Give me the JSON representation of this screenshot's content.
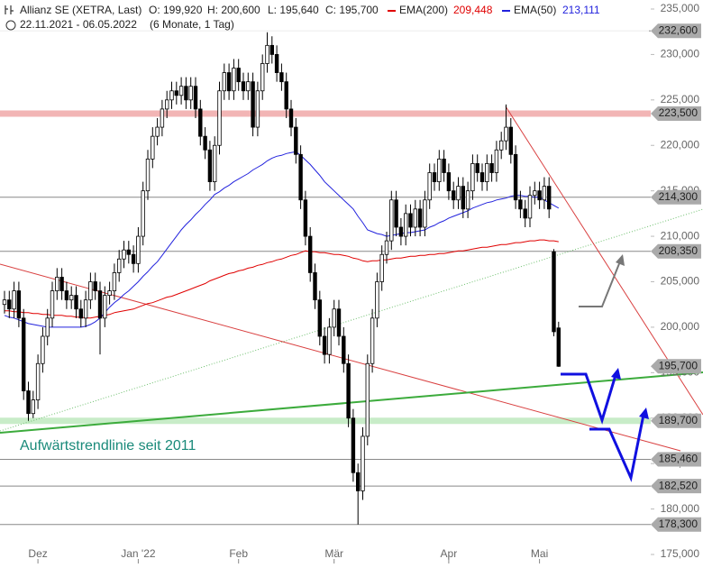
{
  "chart_data": {
    "type": "candlestick",
    "title": "Allianz SE (XETRA, Last)",
    "ohlc_labels": [
      "O: 199,920",
      "H: 200,600",
      "L: 195,640",
      "C: 195,700"
    ],
    "subtitle": "22.11.2021 - 06.05.2022",
    "period": "(6 Monate, 1 Tag)",
    "annotation": "Aufwärtstrendlinie seit 2011",
    "up_color": "#ffffff",
    "down_color": "#000000",
    "categories": [
      null,
      null,
      null,
      null,
      null,
      null,
      null,
      "Dez",
      null,
      null,
      null,
      null,
      null,
      null,
      null,
      null,
      null,
      null,
      null,
      null,
      null,
      null,
      null,
      null,
      null,
      null,
      null,
      null,
      "Jan '22",
      null,
      null,
      null,
      null,
      null,
      null,
      null,
      null,
      null,
      null,
      null,
      null,
      null,
      null,
      null,
      null,
      null,
      null,
      null,
      null,
      "Feb",
      null,
      null,
      null,
      null,
      null,
      null,
      null,
      null,
      null,
      null,
      null,
      null,
      null,
      null,
      null,
      null,
      null,
      null,
      null,
      "Mär",
      null,
      null,
      null,
      null,
      null,
      null,
      null,
      null,
      null,
      null,
      null,
      null,
      null,
      null,
      null,
      null,
      null,
      null,
      null,
      null,
      null,
      null,
      null,
      "Apr",
      null,
      null,
      null,
      null,
      null,
      null,
      null,
      null,
      null,
      null,
      null,
      null,
      null,
      null,
      null,
      null,
      null,
      null,
      "Mai",
      null,
      null,
      null,
      null
    ],
    "open": [
      202.5,
      203,
      202,
      204,
      201,
      193,
      190.5,
      192,
      196,
      199,
      201,
      204,
      205.5,
      204,
      203,
      203.5,
      202,
      201,
      203,
      205,
      204,
      201,
      203.5,
      204,
      206,
      207.5,
      208.5,
      208,
      207,
      210,
      215,
      218.5,
      221,
      222,
      224,
      225,
      226,
      225.5,
      226.5,
      225,
      226.5,
      224,
      221,
      219.5,
      216,
      220,
      226,
      228,
      226,
      228.5,
      227,
      226,
      227,
      222,
      226,
      229,
      231,
      230,
      228,
      227,
      224,
      222,
      219,
      214,
      210,
      206,
      203,
      199,
      197,
      200,
      202,
      199,
      196,
      190,
      184,
      182,
      188,
      196,
      201,
      205,
      208,
      209.5,
      214,
      211,
      210,
      212.5,
      211,
      213,
      211,
      214,
      217,
      216,
      218.5,
      217,
      215,
      214,
      215.5,
      213,
      215,
      218,
      217,
      216,
      218,
      217,
      219.5,
      220.5,
      222,
      219,
      214,
      213,
      212,
      214.5,
      215,
      214,
      215.5,
      208.3,
      199.92
    ],
    "high": [
      204,
      204,
      205,
      205,
      202,
      194,
      193,
      197,
      200,
      202,
      205,
      206.5,
      206.5,
      205,
      204.5,
      204.5,
      203,
      204,
      206,
      206,
      205,
      204.5,
      205,
      207,
      208.5,
      209.5,
      209.5,
      209,
      211,
      216,
      219.5,
      222,
      223,
      225,
      226,
      227,
      227,
      227.5,
      227.5,
      227.5,
      227.5,
      225,
      222,
      220.5,
      221,
      227,
      229,
      229,
      229.5,
      229.5,
      228,
      228,
      228,
      227,
      230,
      232.6,
      232,
      231,
      229,
      228,
      225,
      223,
      220,
      215,
      211,
      207,
      204,
      200,
      201,
      203,
      203,
      200,
      197,
      191,
      185,
      189,
      197,
      202,
      206,
      209,
      210.5,
      215,
      215,
      212,
      213.5,
      213.5,
      214,
      214,
      215,
      218,
      218,
      219.5,
      219.5,
      218,
      216,
      216.5,
      216.5,
      216,
      219,
      219,
      218,
      219,
      219,
      220.5,
      221.5,
      224.5,
      223,
      220,
      215,
      214,
      215.5,
      216,
      216,
      216.5,
      216.5,
      208.6,
      200.6
    ],
    "low": [
      201.5,
      201,
      201,
      200,
      192,
      189.7,
      190,
      191,
      195,
      198,
      200,
      203,
      203,
      202,
      202,
      201,
      200,
      200,
      202,
      203,
      197,
      200,
      202.5,
      203,
      205,
      206.5,
      207,
      206,
      206,
      209,
      214,
      217.5,
      220,
      221,
      223,
      224,
      224.5,
      224.5,
      224,
      224,
      223,
      220,
      218.5,
      215,
      215,
      219,
      225,
      225,
      225,
      226,
      225,
      225,
      221,
      221,
      225,
      228,
      229,
      227,
      226,
      223,
      221,
      218,
      213,
      209,
      205,
      202,
      198,
      196,
      196,
      199,
      198,
      195,
      189,
      183,
      178.3,
      181,
      187,
      195,
      200,
      204,
      207,
      208.5,
      210,
      209,
      209,
      210,
      210,
      210,
      210,
      213,
      215,
      215,
      216,
      214,
      213,
      213,
      212,
      212,
      214,
      216,
      215,
      215,
      216,
      216,
      218.5,
      219.5,
      218,
      213,
      212,
      211,
      211,
      213.5,
      213,
      213,
      212,
      199,
      195.64
    ],
    "close": [
      203,
      202,
      204,
      201,
      193,
      190.5,
      192,
      196,
      199,
      201,
      204,
      205.5,
      204,
      203,
      203.5,
      202,
      201,
      203,
      205,
      204,
      201,
      203.5,
      204,
      206,
      207.5,
      208.5,
      208,
      207,
      210,
      215,
      218.5,
      221,
      222,
      224,
      225,
      226,
      225.5,
      226.5,
      225,
      226.5,
      224,
      221,
      219.5,
      216,
      220,
      226,
      228,
      226,
      228.5,
      227,
      226,
      227,
      222,
      226,
      229,
      231,
      230,
      228,
      227,
      224,
      222,
      219,
      214,
      210,
      206,
      203,
      199,
      197,
      200,
      202,
      199,
      196,
      190,
      184,
      182,
      188,
      196,
      201,
      205,
      208,
      209.5,
      214,
      211,
      210,
      212.5,
      211,
      213,
      211,
      214,
      217,
      216,
      218.5,
      217,
      215,
      214,
      215.5,
      213,
      215,
      218,
      217,
      216,
      218,
      217,
      219.5,
      220.5,
      222,
      219,
      214,
      213,
      212,
      214.5,
      215,
      214,
      215.5,
      213,
      199.5,
      195.7
    ],
    "series": [
      {
        "name": "EMA(200)",
        "value_label": "209,448",
        "color": "#e00000",
        "values": [
          201.8,
          201.8,
          201.7,
          201.7,
          201.6,
          201.6,
          201.5,
          201.5,
          201.4,
          201.4,
          201.3,
          201.3,
          201.3,
          201.2,
          201.2,
          201.1,
          201.1,
          201.0,
          201.0,
          201.1,
          201.2,
          201.3,
          201.4,
          201.6,
          201.7,
          201.8,
          201.9,
          202.0,
          202.2,
          202.4,
          202.6,
          202.7,
          202.9,
          203.1,
          203.3,
          203.4,
          203.6,
          203.8,
          204.0,
          204.2,
          204.4,
          204.6,
          204.8,
          205.1,
          205.3,
          205.5,
          205.7,
          205.9,
          206.0,
          206.2,
          206.3,
          206.5,
          206.6,
          206.8,
          206.9,
          207.1,
          207.2,
          207.4,
          207.5,
          207.7,
          207.9,
          208.0,
          208.2,
          208.4,
          208.3,
          208.3,
          208.2,
          208.2,
          208.1,
          208.0,
          208.0,
          207.9,
          207.8,
          207.6,
          207.5,
          207.3,
          207.2,
          207.3,
          207.3,
          207.4,
          207.4,
          207.5,
          207.6,
          207.6,
          207.7,
          207.8,
          207.8,
          207.9,
          207.9,
          208.0,
          208.0,
          208.1,
          208.1,
          208.2,
          208.3,
          208.4,
          208.4,
          208.5,
          208.6,
          208.7,
          208.8,
          208.8,
          208.9,
          209.0,
          209.1,
          209.1,
          209.2,
          209.3,
          209.3,
          209.4,
          209.5,
          209.5,
          209.6,
          209.6,
          209.5,
          209.5,
          209.4
        ]
      },
      {
        "name": "EMA(50)",
        "value_label": "213,111",
        "color": "#2222dd",
        "values": [
          201.3,
          201.1,
          201.0,
          200.8,
          200.6,
          200.4,
          200.3,
          200.2,
          200.1,
          200.0,
          200.0,
          200.0,
          200.0,
          200.0,
          200.0,
          200.0,
          200.0,
          200.1,
          200.3,
          200.6,
          201.0,
          201.6,
          202.2,
          202.7,
          203.1,
          203.6,
          204.0,
          204.5,
          205.0,
          205.6,
          206.1,
          206.7,
          207.2,
          207.9,
          208.6,
          209.3,
          210.0,
          210.7,
          211.3,
          211.8,
          212.4,
          212.9,
          213.5,
          214.0,
          214.6,
          214.9,
          215.3,
          215.6,
          216.0,
          216.3,
          216.6,
          216.9,
          217.3,
          217.6,
          217.9,
          218.3,
          218.6,
          218.8,
          218.9,
          219.1,
          219.2,
          219.3,
          218.9,
          218.4,
          217.9,
          217.3,
          216.7,
          216.0,
          215.5,
          215.0,
          214.5,
          214.0,
          213.5,
          213.0,
          212.2,
          211.5,
          210.7,
          210.5,
          210.3,
          210.2,
          210.0,
          210.1,
          210.2,
          210.3,
          210.4,
          210.4,
          210.5,
          210.6,
          210.7,
          211.0,
          211.2,
          211.5,
          211.7,
          212.0,
          212.2,
          212.4,
          212.6,
          212.8,
          213.1,
          213.3,
          213.5,
          213.7,
          213.8,
          214.0,
          214.1,
          214.2,
          214.4,
          214.5,
          214.5,
          214.4,
          214.4,
          214.3,
          214.3,
          214.0,
          213.7,
          213.4,
          213.1
        ]
      }
    ],
    "ylim": [
      175,
      235
    ],
    "yticks": [
      {
        "value": 235,
        "label": "235,000"
      },
      {
        "value": 230,
        "label": "230,000"
      },
      {
        "value": 225,
        "label": "225,000"
      },
      {
        "value": 220,
        "label": "220,000"
      },
      {
        "value": 215,
        "label": "215,000"
      },
      {
        "value": 210,
        "label": "210,000"
      },
      {
        "value": 205,
        "label": "205,000"
      },
      {
        "value": 200,
        "label": "200,000"
      },
      {
        "value": 195,
        "label": "195,000"
      },
      {
        "value": 190,
        "label": "190,000"
      },
      {
        "value": 185,
        "label": "185,000"
      },
      {
        "value": 180,
        "label": "180,000"
      },
      {
        "value": 175,
        "label": "175,000"
      }
    ],
    "levels": [
      {
        "value": 232.6,
        "label": "232,600",
        "color": "#888888"
      },
      {
        "value": 223.5,
        "label": "223,500",
        "color": "#f2b5b5"
      },
      {
        "value": 214.3,
        "label": "214,300",
        "color": "#888888"
      },
      {
        "value": 208.35,
        "label": "208,350",
        "color": "#888888"
      },
      {
        "value": 195.7,
        "label": "195,700",
        "color": "#ffffff"
      },
      {
        "value": 189.7,
        "label": "189,700",
        "color": "#c8ecc8"
      },
      {
        "value": 185.46,
        "label": "185,460",
        "color": "#888888"
      },
      {
        "value": 182.52,
        "label": "182,520",
        "color": "#888888"
      },
      {
        "value": 178.3,
        "label": "178,300",
        "color": "#888888"
      }
    ]
  }
}
